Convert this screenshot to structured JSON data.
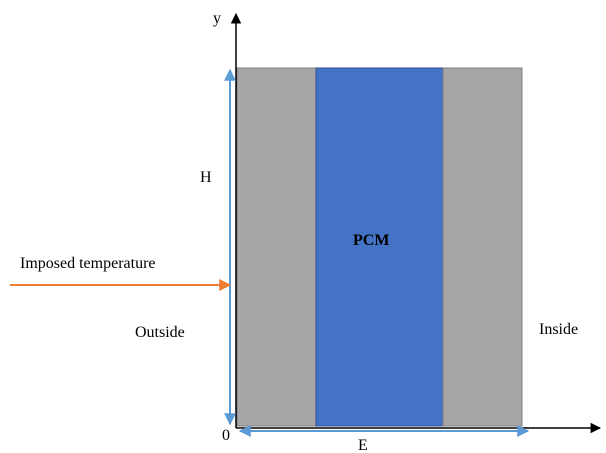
{
  "labels": {
    "y_axis": "y",
    "origin": "0",
    "height": "H",
    "width": "E",
    "core": "PCM",
    "boundary": "Imposed temperature",
    "outside": "Outside",
    "inside": "Inside"
  },
  "colors": {
    "wall": "#a6a6a6",
    "pcm": "#4472c4",
    "dimension": "#5b9bd5",
    "arrow": "#ed7d31",
    "axis": "#000000"
  }
}
